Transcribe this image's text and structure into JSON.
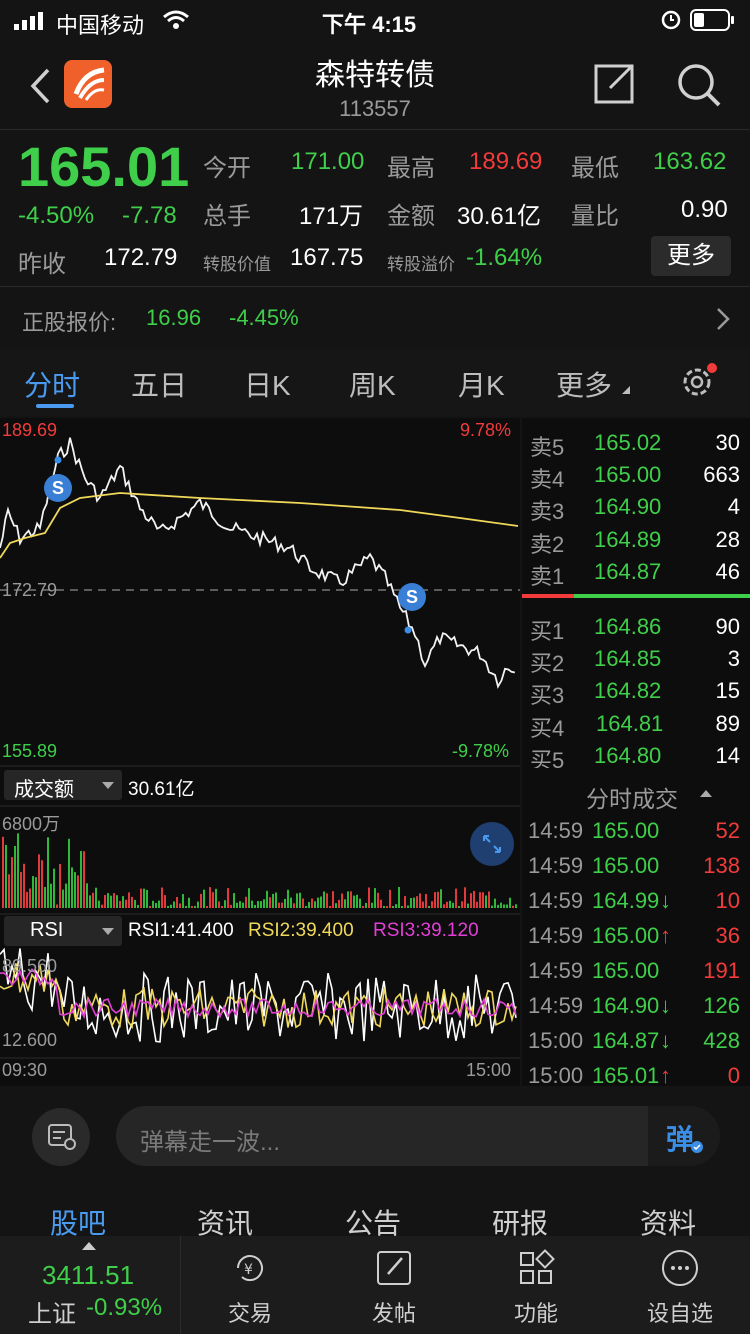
{
  "status_bar": {
    "carrier": "中国移动",
    "time": "下午 4:15"
  },
  "header": {
    "title": "森特转债",
    "code": "113557"
  },
  "quote": {
    "price": "165.01",
    "change_pct": "-4.50%",
    "change": "-7.78",
    "prev_close_label": "昨收",
    "prev_close": "172.79",
    "open_label": "今开",
    "open": "171.00",
    "high_label": "最高",
    "high": "189.69",
    "low_label": "最低",
    "low": "163.62",
    "volume_label": "总手",
    "volume": "171万",
    "amount_label": "金额",
    "amount": "30.61亿",
    "ratio_label": "量比",
    "ratio": "0.90",
    "conv_value_label": "转股价值",
    "conv_value": "167.75",
    "premium_label": "转股溢价",
    "premium": "-1.64%",
    "more_label": "更多",
    "stock_label": "正股报价:",
    "stock_price": "16.96",
    "stock_change": "-4.45%"
  },
  "tabs": [
    "分时",
    "五日",
    "日K",
    "周K",
    "月K",
    "更多"
  ],
  "chart": {
    "top_price": "189.69",
    "top_pct": "9.78%",
    "mid_price": "172.79",
    "bottom_price": "155.89",
    "bottom_pct": "-9.78%",
    "volume_label": "成交额",
    "volume_value": "30.61亿",
    "volume_scale": "6800万",
    "rsi_label": "RSI",
    "rsi1": "RSI1:41.400",
    "rsi2": "RSI2:39.400",
    "rsi3": "RSI3:39.120",
    "rsi_top": "89.560",
    "rsi_bottom": "12.600",
    "time_start": "09:30",
    "time_end": "15:00",
    "s_marker": "S"
  },
  "order_book": {
    "asks": [
      {
        "label": "卖5",
        "price": "165.02",
        "qty": "30"
      },
      {
        "label": "卖4",
        "price": "165.00",
        "qty": "663"
      },
      {
        "label": "卖3",
        "price": "164.90",
        "qty": "4"
      },
      {
        "label": "卖2",
        "price": "164.89",
        "qty": "28"
      },
      {
        "label": "卖1",
        "price": "164.87",
        "qty": "46"
      }
    ],
    "bids": [
      {
        "label": "买1",
        "price": "164.86",
        "qty": "90"
      },
      {
        "label": "买2",
        "price": "164.85",
        "qty": "3"
      },
      {
        "label": "买3",
        "price": "164.82",
        "qty": "15"
      },
      {
        "label": "买4",
        "price": "164.81",
        "qty": "89"
      },
      {
        "label": "买5",
        "price": "164.80",
        "qty": "14"
      }
    ]
  },
  "trades": {
    "title": "分时成交",
    "rows": [
      {
        "time": "14:59",
        "price": "165.00",
        "arrow": "",
        "qty": "52",
        "color": "red"
      },
      {
        "time": "14:59",
        "price": "165.00",
        "arrow": "",
        "qty": "138",
        "color": "red"
      },
      {
        "time": "14:59",
        "price": "164.99",
        "arrow": "↓",
        "qty": "10",
        "color": "red"
      },
      {
        "time": "14:59",
        "price": "165.00",
        "arrow": "↑",
        "qty": "36",
        "color": "red"
      },
      {
        "time": "14:59",
        "price": "165.00",
        "arrow": "",
        "qty": "191",
        "color": "red"
      },
      {
        "time": "14:59",
        "price": "164.90",
        "arrow": "↓",
        "qty": "126",
        "color": "green"
      },
      {
        "time": "15:00",
        "price": "164.87",
        "arrow": "↓",
        "qty": "428",
        "color": "green"
      },
      {
        "time": "15:00",
        "price": "165.01",
        "arrow": "↑",
        "qty": "0",
        "color": "red"
      }
    ]
  },
  "danmu": {
    "placeholder": "弹幕走一波...",
    "send_label": "弹"
  },
  "subtabs": [
    "股吧",
    "资讯",
    "公告",
    "研报",
    "资料"
  ],
  "bottom_nav": {
    "index_value": "3411.51",
    "index_name": "上证",
    "index_change": "-0.93%",
    "items": [
      "交易",
      "发帖",
      "功能",
      "设自选"
    ]
  },
  "colors": {
    "up": "#f23b3b",
    "down": "#3fcf4a",
    "avg_line": "#f0d95a",
    "accent": "#3a8ee6"
  }
}
